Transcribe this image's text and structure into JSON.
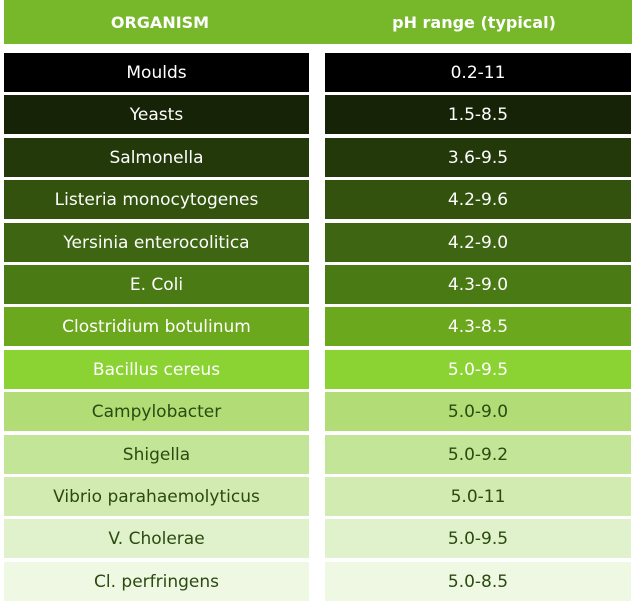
{
  "header": {
    "organism": "ORGANISM",
    "ph_range": "pH range (typical)"
  },
  "colors": {
    "header_bg": "#76b82a"
  },
  "rows": [
    {
      "organism": "Moulds",
      "ph": "0.2-11",
      "bg": "#000000",
      "fg": "#ffffff"
    },
    {
      "organism": "Yeasts",
      "ph": "1.5-8.5",
      "bg": "#172306",
      "fg": "#ffffff"
    },
    {
      "organism": "Salmonella",
      "ph": "3.6-9.5",
      "bg": "#23390a",
      "fg": "#ffffff"
    },
    {
      "organism": "Listeria monocytogenes",
      "ph": "4.2-9.6",
      "bg": "#32520e",
      "fg": "#ffffff"
    },
    {
      "organism": "Yersinia enterocolitica",
      "ph": "4.2-9.0",
      "bg": "#3e6511",
      "fg": "#ffffff"
    },
    {
      "organism": "E. Coli",
      "ph": "4.3-9.0",
      "bg": "#4a7a14",
      "fg": "#ffffff"
    },
    {
      "organism": "Clostridium botulinum",
      "ph": "4.3-8.5",
      "bg": "#6ba81d",
      "fg": "#ffffff"
    },
    {
      "organism": "Bacillus cereus",
      "ph": "5.0-9.5",
      "bg": "#8bd332",
      "fg": "#ffffff"
    },
    {
      "organism": "Campylobacter",
      "ph": "5.0-9.0",
      "bg": "#b1dc76",
      "fg": "#2b4a10"
    },
    {
      "organism": "Shigella",
      "ph": "5.0-9.2",
      "bg": "#c3e597",
      "fg": "#2b4a10"
    },
    {
      "organism": "Vibrio parahaemolyticus",
      "ph": "5.0-11",
      "bg": "#d2ebb1",
      "fg": "#2b4a10"
    },
    {
      "organism": "V. Cholerae",
      "ph": "5.0-9.5",
      "bg": "#e0f2cb",
      "fg": "#2b4a10"
    },
    {
      "organism": "Cl. perfringens",
      "ph": "5.0-8.5",
      "bg": "#eef8e2",
      "fg": "#2b4a10"
    }
  ]
}
